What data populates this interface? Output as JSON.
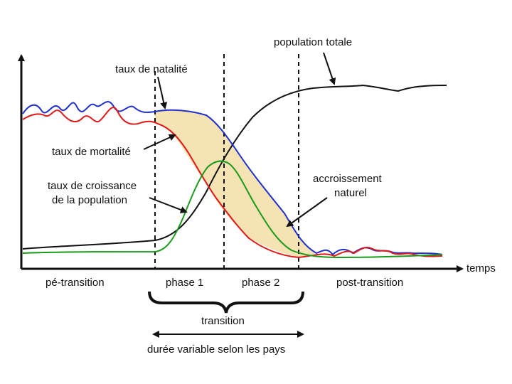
{
  "labels": {
    "population_totale": "population totale",
    "taux_natalite": "taux de natalité",
    "taux_mortalite": "taux de mortalité",
    "taux_croissance_1": "taux de croissance",
    "taux_croissance_2": "de la population",
    "accroissement_1": "accroissement",
    "accroissement_2": "naturel",
    "temps": "temps",
    "pre_transition": "pé-transition",
    "phase1": "phase 1",
    "phase2": "phase 2",
    "post_transition": "post-transition",
    "transition": "transition",
    "duree": "durée variable selon les pays"
  },
  "colors": {
    "birth": "#1f2fd0",
    "death": "#e01818",
    "growth": "#1a9a1a",
    "population": "#111111",
    "fill": "#f5e3b3"
  }
}
